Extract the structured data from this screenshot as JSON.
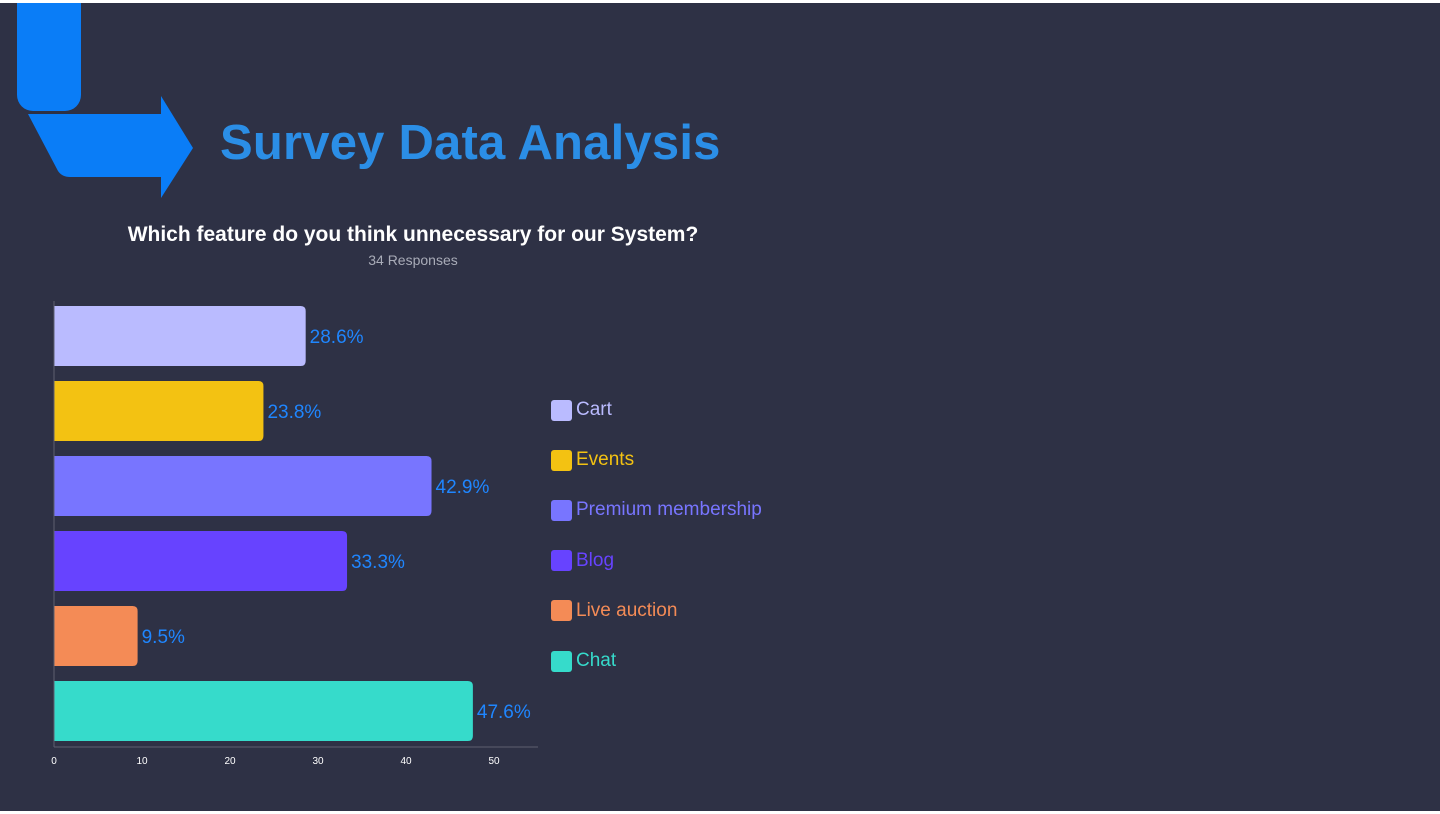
{
  "title": "Survey Data Analysis",
  "question": "Which feature do you think unnecessary for our System?",
  "responses": "34 Responses",
  "colors": {
    "background": "#2e3145",
    "title": "#2b8ee6",
    "logo": "#0a7df7",
    "data_label": "#1f86ff",
    "axis": "#5d6070",
    "tick_label": "#ffffff"
  },
  "chart_data": {
    "type": "bar",
    "orientation": "horizontal",
    "title": "Which feature do you think unnecessary for our System?",
    "subtitle": "34 Responses",
    "categories": [
      "Cart",
      "Events",
      "Premium membership",
      "Blog",
      "Live auction",
      "Chat"
    ],
    "values": [
      28.6,
      23.8,
      42.9,
      33.3,
      9.5,
      47.6
    ],
    "data_labels": [
      "28.6%",
      "23.8%",
      "42.9%",
      "33.3%",
      "9.5%",
      "47.6%"
    ],
    "colors": [
      "#babbff",
      "#f3c212",
      "#7875ff",
      "#6743ff",
      "#f48b56",
      "#36dbcb"
    ],
    "xlim": [
      0,
      55
    ],
    "xticks": [
      0,
      10,
      20,
      30,
      40,
      50
    ],
    "xtick_labels": [
      "0",
      "10",
      "20",
      "30",
      "40",
      "50"
    ],
    "grid": false,
    "legend": {
      "position": "right",
      "items": [
        "Cart",
        "Events",
        "Premium membership",
        "Blog",
        "Live auction",
        "Chat"
      ]
    }
  }
}
